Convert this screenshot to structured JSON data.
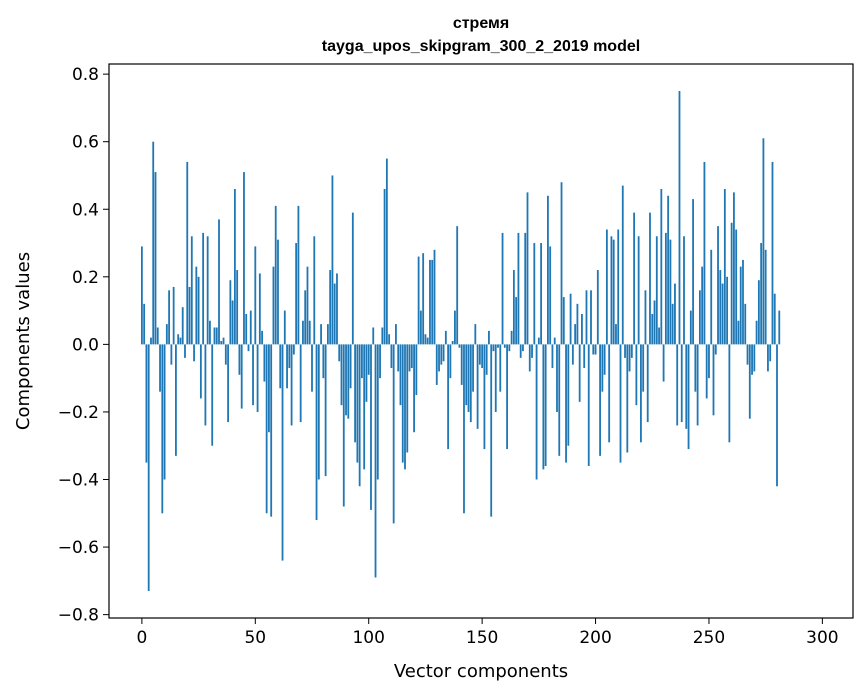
{
  "chart_data": {
    "type": "bar",
    "title": "стремя",
    "subtitle": "tayga_upos_skipgram_300_2_2019 model",
    "xlabel": "Vector components",
    "ylabel": "Components values",
    "xlim": [
      -14.5,
      313.5
    ],
    "ylim": [
      -0.81,
      0.83
    ],
    "xticks": [
      0,
      50,
      100,
      150,
      200,
      250,
      300
    ],
    "yticks": [
      -0.8,
      -0.6,
      -0.4,
      -0.2,
      0.0,
      0.2,
      0.4,
      0.6,
      0.8
    ],
    "ytick_labels": [
      "−0.8",
      "−0.6",
      "−0.4",
      "−0.2",
      "0.0",
      "0.2",
      "0.4",
      "0.6",
      "0.8"
    ],
    "bar_color": "#1f77b4",
    "x": "0..299",
    "values": [
      0.29,
      0.12,
      -0.35,
      -0.73,
      0.02,
      0.6,
      0.51,
      0.05,
      -0.14,
      -0.5,
      -0.4,
      0.06,
      0.16,
      -0.06,
      0.17,
      -0.33,
      0.03,
      0.02,
      0.11,
      -0.04,
      0.54,
      0.17,
      0.32,
      -0.05,
      0.23,
      0.2,
      -0.16,
      0.33,
      -0.24,
      0.32,
      0.07,
      -0.3,
      0.05,
      0.05,
      0.37,
      0.01,
      0.02,
      -0.06,
      -0.23,
      0.19,
      0.13,
      0.46,
      0.22,
      -0.09,
      -0.19,
      0.51,
      0.09,
      -0.02,
      0.1,
      -0.18,
      0.29,
      -0.2,
      0.21,
      0.04,
      -0.11,
      -0.5,
      -0.26,
      -0.51,
      0.23,
      0.41,
      0.31,
      -0.13,
      -0.64,
      0.1,
      -0.13,
      -0.07,
      -0.24,
      -0.03,
      0.3,
      0.41,
      -0.23,
      0.07,
      0.16,
      0.23,
      0.07,
      -0.14,
      0.32,
      -0.52,
      -0.4,
      0.06,
      -0.1,
      -0.39,
      0.06,
      0.22,
      0.5,
      0.18,
      0.21,
      -0.05,
      -0.18,
      -0.48,
      -0.21,
      -0.22,
      -0.13,
      0.39,
      -0.29,
      -0.35,
      -0.42,
      -0.1,
      -0.37,
      -0.17,
      -0.09,
      -0.49,
      0.05,
      -0.69,
      -0.4,
      -0.1,
      0.05,
      0.46,
      0.55,
      0.03,
      -0.07,
      -0.53,
      0.06,
      -0.08,
      -0.18,
      -0.35,
      -0.37,
      -0.32,
      -0.08,
      -0.07,
      -0.26,
      -0.15,
      0.26,
      0.1,
      0.27,
      0.03,
      0.02,
      0.25,
      0.25,
      0.28,
      -0.12,
      -0.08,
      -0.06,
      -0.05,
      0.04,
      -0.31,
      -0.1,
      0.01,
      0.1,
      0.35,
      -0.01,
      -0.12,
      -0.5,
      -0.18,
      -0.2,
      -0.23,
      -0.14,
      0.06,
      -0.25,
      -0.06,
      -0.07,
      -0.31,
      -0.09,
      0.04,
      -0.51,
      -0.02,
      -0.2,
      -0.01,
      -0.14,
      0.33,
      -0.01,
      -0.31,
      -0.02,
      0.04,
      0.22,
      0.14,
      0.33,
      -0.04,
      -0.02,
      0.33,
      0.45,
      -0.08,
      -0.04,
      0.3,
      -0.4,
      0.02,
      0.3,
      -0.37,
      -0.36,
      0.44,
      0.29,
      -0.07,
      0.02,
      -0.2,
      -0.33,
      0.48,
      0.14,
      -0.35,
      -0.3,
      0.15,
      -0.06,
      0.06,
      0.12,
      -0.17,
      0.09,
      -0.07,
      0.16,
      -0.36,
      0.16,
      -0.03,
      -0.03,
      0.22,
      -0.33,
      -0.14,
      -0.09,
      0.34,
      -0.29,
      0.32,
      0.31,
      0.06,
      0.34,
      -0.35,
      0.47,
      -0.04,
      -0.32,
      -0.08,
      -0.04,
      0.39,
      -0.18,
      0.32,
      -0.29,
      -0.14,
      0.16,
      -0.23,
      0.39,
      0.09,
      0.13,
      0.32,
      0.05,
      0.46,
      -0.11,
      0.33,
      0.44,
      0.31,
      0.12,
      0.18,
      -0.24,
      0.75,
      -0.23,
      0.32,
      -0.25,
      -0.31,
      0.1,
      0.43,
      -0.14,
      -0.24,
      0.16,
      0.23,
      0.54,
      -0.16,
      -0.1,
      0.28,
      -0.21,
      -0.03,
      0.35,
      0.22,
      0.18,
      0.46,
      0.2,
      -0.29,
      0.36,
      0.45,
      0.34,
      0.07,
      0.23,
      0.25,
      0.12,
      -0.06,
      -0.22,
      -0.09,
      -0.08,
      0.07,
      0.19,
      0.3,
      0.61,
      0.28,
      -0.08,
      -0.05,
      0.54,
      0.15,
      -0.42,
      0.1
    ]
  }
}
